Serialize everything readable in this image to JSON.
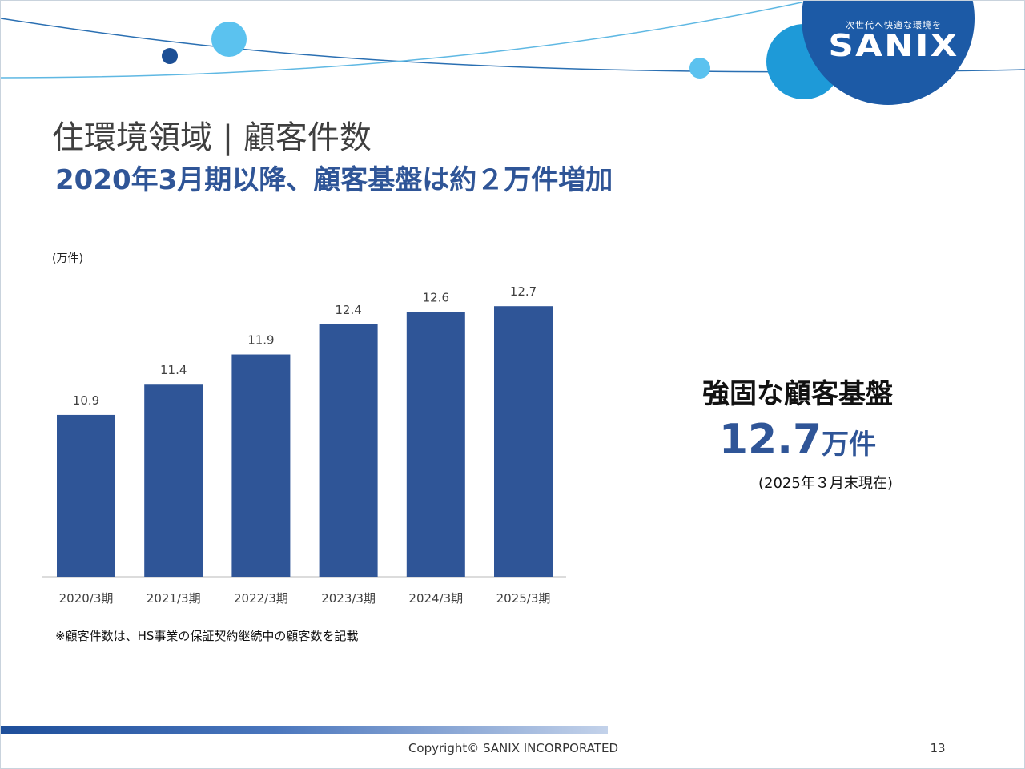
{
  "logo": {
    "tagline": "次世代へ快適な環境を",
    "name": "SANIX"
  },
  "header": {
    "title": "住環境領域 | 顧客件数",
    "subtitle": "2020年3月期以降、顧客基盤は約２万件増加"
  },
  "chart_data": {
    "type": "bar",
    "unit_label": "(万件)",
    "categories": [
      "2020/3期",
      "2021/3期",
      "2022/3期",
      "2023/3期",
      "2024/3期",
      "2025/3期"
    ],
    "values": [
      10.9,
      11.4,
      11.9,
      12.4,
      12.6,
      12.7
    ],
    "data_labels": [
      "10.9",
      "11.4",
      "11.9",
      "12.4",
      "12.6",
      "12.7"
    ],
    "bar_color": "#2f5597",
    "grid": false,
    "legend": "none"
  },
  "footnote": "※顧客件数は、HS事業の保証契約継続中の顧客数を記載",
  "callout": {
    "heading": "強固な顧客基盤",
    "value": "12.7",
    "unit": "万件",
    "note": "(2025年３月末現在)"
  },
  "footer": {
    "copyright": "Copyright©  SANIX INCORPORATED",
    "page_number": "13"
  },
  "colors": {
    "accent_blue": "#2f5597",
    "logo_blue": "#1c5aa6",
    "light_blue": "#5bc2ef"
  }
}
